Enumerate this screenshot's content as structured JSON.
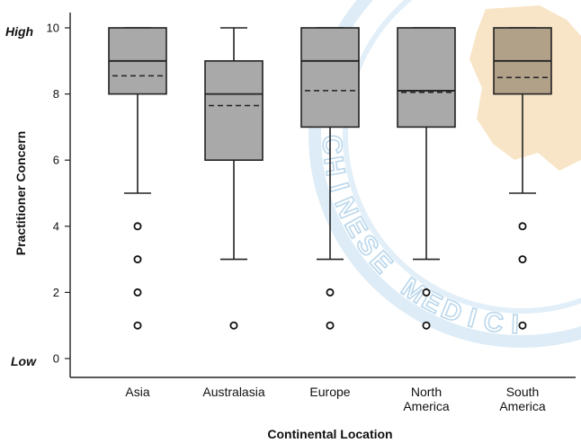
{
  "chart_data": {
    "type": "box",
    "xlabel": "Continental Location",
    "ylabel": "Practitioner Concern",
    "ylim": [
      0,
      10
    ],
    "yticks": [
      "0",
      "2",
      "4",
      "6",
      "8",
      "10"
    ],
    "anchors": {
      "high": "High",
      "low": "Low"
    },
    "grid": false,
    "watermark": {
      "letters": "CHINESE MEDICI",
      "colors": {
        "ring": "#c5dff0",
        "text": "#b3d3ea",
        "map": "#f6d9ae"
      }
    },
    "colors": {
      "box": "#a9a9a9",
      "box_highlight": "#b2a189",
      "stroke": "#222222"
    },
    "categories": [
      {
        "label": [
          "Asia"
        ],
        "whisker_low": 5,
        "q1": 8,
        "median": 9,
        "mean": 8.55,
        "q3": 10,
        "whisker_high": 10,
        "outliers": [
          4,
          3,
          2,
          1
        ]
      },
      {
        "label": [
          "Australasia"
        ],
        "whisker_low": 3,
        "q1": 6,
        "median": 8,
        "mean": 7.65,
        "q3": 9,
        "whisker_high": 10,
        "outliers": [
          1
        ]
      },
      {
        "label": [
          "Europe"
        ],
        "whisker_low": 3,
        "q1": 7,
        "median": 9,
        "mean": 8.1,
        "q3": 10,
        "whisker_high": 10,
        "outliers": [
          2,
          1
        ]
      },
      {
        "label": [
          "North",
          "America"
        ],
        "whisker_low": 3,
        "q1": 7,
        "median": 8.1,
        "mean": 8.05,
        "q3": 10,
        "whisker_high": 10,
        "outliers": [
          2,
          1
        ]
      },
      {
        "label": [
          "South",
          "America"
        ],
        "whisker_low": 5,
        "q1": 8,
        "median": 9,
        "mean": 8.5,
        "q3": 10,
        "whisker_high": 10,
        "outliers": [
          4,
          3,
          1
        ]
      }
    ]
  }
}
